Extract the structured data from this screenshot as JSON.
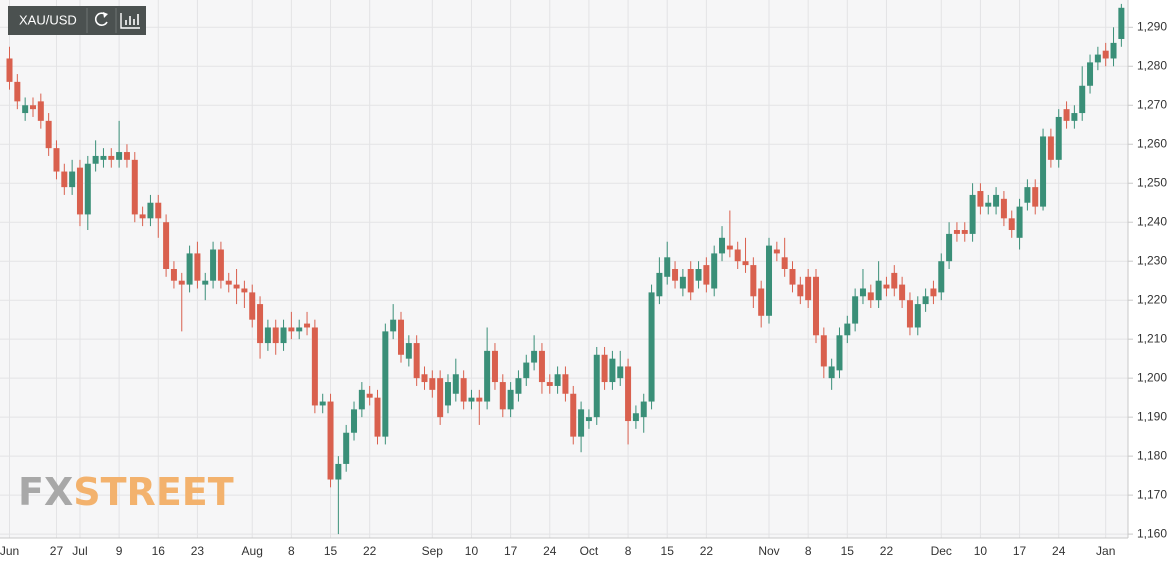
{
  "chart_data": {
    "type": "candlestick",
    "title": "XAU/USD",
    "annotations": [
      "FX",
      "STREET"
    ],
    "up_color": "#3a8f78",
    "down_color": "#d9604e",
    "grid": true,
    "ylim": [
      1159,
      1297
    ],
    "yticks": [
      {
        "value": 1160,
        "label": "1,160"
      },
      {
        "value": 1170,
        "label": "1,170"
      },
      {
        "value": 1180,
        "label": "1,180"
      },
      {
        "value": 1190,
        "label": "1,190"
      },
      {
        "value": 1200,
        "label": "1,200"
      },
      {
        "value": 1210,
        "label": "1,210"
      },
      {
        "value": 1220,
        "label": "1,220"
      },
      {
        "value": 1230,
        "label": "1,230"
      },
      {
        "value": 1240,
        "label": "1,240"
      },
      {
        "value": 1250,
        "label": "1,250"
      },
      {
        "value": 1260,
        "label": "1,260"
      },
      {
        "value": 1270,
        "label": "1,270"
      },
      {
        "value": 1280,
        "label": "1,280"
      },
      {
        "value": 1290,
        "label": "1,290"
      }
    ],
    "categories": [
      "Jun",
      null,
      null,
      null,
      null,
      null,
      "27",
      null,
      null,
      "Jul",
      null,
      null,
      null,
      null,
      "9",
      null,
      null,
      null,
      null,
      "16",
      null,
      null,
      null,
      null,
      "23",
      null,
      null,
      null,
      null,
      null,
      null,
      "Aug",
      null,
      null,
      null,
      null,
      "8",
      null,
      null,
      null,
      null,
      "15",
      null,
      null,
      null,
      null,
      "22",
      null,
      null,
      null,
      null,
      null,
      null,
      null,
      "Sep",
      null,
      null,
      null,
      null,
      "10",
      null,
      null,
      null,
      null,
      "17",
      null,
      null,
      null,
      null,
      "24",
      null,
      null,
      null,
      null,
      "Oct",
      null,
      null,
      null,
      null,
      "8",
      null,
      null,
      null,
      null,
      "15",
      null,
      null,
      null,
      null,
      "22",
      null,
      null,
      null,
      null,
      null,
      null,
      null,
      "Nov",
      null,
      null,
      null,
      null,
      "8",
      null,
      null,
      null,
      null,
      "15",
      null,
      null,
      null,
      null,
      "22",
      null,
      null,
      null,
      null,
      null,
      null,
      "Dec",
      null,
      null,
      null,
      null,
      "10",
      null,
      null,
      null,
      null,
      "17",
      null,
      null,
      null,
      null,
      "24",
      null,
      null,
      null,
      null,
      null,
      "Jan",
      null,
      null
    ],
    "open": [
      1282,
      1276,
      1268,
      1270,
      1271,
      1266,
      1259,
      1253,
      1249,
      1254,
      1242,
      1255,
      1256,
      1257,
      1256,
      1258,
      1256,
      1242,
      1241,
      1245,
      1240,
      1228,
      1225,
      1224,
      1232,
      1224,
      1225,
      1233,
      1225,
      1224,
      1223,
      1222,
      1219,
      1209,
      1213,
      1209,
      1213,
      1212,
      1214,
      1213,
      1193,
      1194,
      1174,
      1178,
      1186,
      1192,
      1196,
      1195,
      1185,
      1212,
      1215,
      1205,
      1209,
      1201,
      1200,
      1200,
      1193,
      1196,
      1200,
      1194,
      1195,
      1194,
      1207,
      1199,
      1192,
      1196,
      1200,
      1204,
      1207,
      1199,
      1198,
      1201,
      1196,
      1185,
      1189,
      1190,
      1206,
      1199,
      1200,
      1203,
      1189,
      1190,
      1194,
      1221,
      1226,
      1228,
      1223,
      1228,
      1225,
      1229,
      1223,
      1232,
      1234,
      1233,
      1230,
      1229,
      1223,
      1216,
      1233,
      1231,
      1228,
      1224,
      1226,
      1226,
      1211,
      1200,
      1202,
      1211,
      1214,
      1221,
      1222,
      1220,
      1224,
      1227,
      1224,
      1220,
      1213,
      1219,
      1223,
      1222,
      1230,
      1238,
      1238,
      1237,
      1248,
      1244,
      1244,
      1246,
      1241,
      1236,
      1245,
      1249,
      1244,
      1262,
      1256,
      1269,
      1266,
      1268,
      1275,
      1281,
      1284,
      1282,
      1287
    ],
    "high": [
      1285,
      1278,
      1272,
      1272,
      1273,
      1268,
      1261,
      1255,
      1256,
      1256,
      1257,
      1261,
      1259,
      1259,
      1266,
      1260,
      1258,
      1244,
      1247,
      1247,
      1242,
      1230,
      1227,
      1234,
      1235,
      1227,
      1235,
      1235,
      1227,
      1228,
      1225,
      1224,
      1221,
      1215,
      1215,
      1215,
      1217,
      1215,
      1217,
      1215,
      1196,
      1196,
      1180,
      1188,
      1194,
      1199,
      1198,
      1197,
      1214,
      1219,
      1217,
      1211,
      1211,
      1203,
      1202,
      1202,
      1201,
      1205,
      1202,
      1197,
      1197,
      1213,
      1209,
      1201,
      1199,
      1202,
      1206,
      1211,
      1209,
      1201,
      1203,
      1203,
      1198,
      1194,
      1192,
      1208,
      1208,
      1207,
      1207,
      1205,
      1193,
      1196,
      1224,
      1231,
      1235,
      1230,
      1228,
      1230,
      1230,
      1231,
      1234,
      1239,
      1243,
      1235,
      1236,
      1231,
      1225,
      1236,
      1235,
      1236,
      1230,
      1226,
      1228,
      1228,
      1213,
      1205,
      1213,
      1216,
      1223,
      1228,
      1224,
      1230,
      1226,
      1229,
      1226,
      1222,
      1221,
      1223,
      1225,
      1232,
      1240,
      1240,
      1240,
      1250,
      1250,
      1247,
      1249,
      1248,
      1243,
      1246,
      1251,
      1251,
      1264,
      1264,
      1269,
      1271,
      1270,
      1280,
      1283,
      1285,
      1286,
      1290,
      1296
    ],
    "low": [
      1274,
      1269,
      1266,
      1267,
      1264,
      1257,
      1251,
      1247,
      1247,
      1239,
      1238,
      1253,
      1254,
      1254,
      1254,
      1254,
      1240,
      1239,
      1239,
      1236,
      1226,
      1223,
      1212,
      1222,
      1223,
      1220,
      1223,
      1223,
      1222,
      1219,
      1218,
      1213,
      1205,
      1207,
      1206,
      1207,
      1210,
      1210,
      1211,
      1191,
      1191,
      1172,
      1160,
      1176,
      1184,
      1190,
      1193,
      1183,
      1183,
      1210,
      1204,
      1203,
      1198,
      1197,
      1195,
      1188,
      1191,
      1194,
      1192,
      1192,
      1188,
      1192,
      1197,
      1190,
      1190,
      1194,
      1198,
      1202,
      1196,
      1196,
      1196,
      1194,
      1183,
      1181,
      1187,
      1188,
      1197,
      1197,
      1198,
      1183,
      1187,
      1186,
      1192,
      1219,
      1224,
      1223,
      1221,
      1220,
      1223,
      1222,
      1221,
      1230,
      1231,
      1228,
      1227,
      1218,
      1213,
      1214,
      1230,
      1226,
      1222,
      1219,
      1218,
      1209,
      1200,
      1197,
      1200,
      1209,
      1212,
      1219,
      1218,
      1218,
      1221,
      1221,
      1218,
      1211,
      1211,
      1217,
      1219,
      1220,
      1228,
      1235,
      1235,
      1235,
      1242,
      1242,
      1242,
      1239,
      1236,
      1233,
      1243,
      1242,
      1243,
      1254,
      1254,
      1264,
      1264,
      1266,
      1273,
      1279,
      1280,
      1280,
      1285
    ],
    "close": [
      1276,
      1271,
      1270,
      1269,
      1266,
      1259,
      1253,
      1249,
      1253,
      1242,
      1255,
      1257,
      1257,
      1256,
      1258,
      1256,
      1242,
      1241,
      1245,
      1241,
      1228,
      1225,
      1224,
      1232,
      1225,
      1225,
      1233,
      1225,
      1224,
      1223,
      1222,
      1215,
      1209,
      1213,
      1209,
      1213,
      1212,
      1213,
      1213,
      1193,
      1194,
      1174,
      1178,
      1186,
      1192,
      1197,
      1195,
      1185,
      1212,
      1215,
      1206,
      1209,
      1200,
      1199,
      1197,
      1190,
      1199,
      1201,
      1194,
      1195,
      1194,
      1207,
      1199,
      1192,
      1197,
      1200,
      1204,
      1207,
      1199,
      1198,
      1201,
      1196,
      1185,
      1192,
      1190,
      1206,
      1199,
      1205,
      1203,
      1189,
      1191,
      1194,
      1222,
      1227,
      1231,
      1225,
      1226,
      1222,
      1228,
      1224,
      1232,
      1236,
      1233,
      1230,
      1229,
      1221,
      1216,
      1234,
      1232,
      1228,
      1224,
      1221,
      1220,
      1211,
      1203,
      1203,
      1211,
      1214,
      1221,
      1223,
      1220,
      1225,
      1223,
      1223,
      1220,
      1213,
      1219,
      1221,
      1221,
      1230,
      1237,
      1237,
      1237,
      1247,
      1244,
      1245,
      1247,
      1241,
      1238,
      1244,
      1249,
      1244,
      1262,
      1256,
      1267,
      1266,
      1268,
      1275,
      1281,
      1283,
      1282,
      1286,
      1295
    ]
  }
}
